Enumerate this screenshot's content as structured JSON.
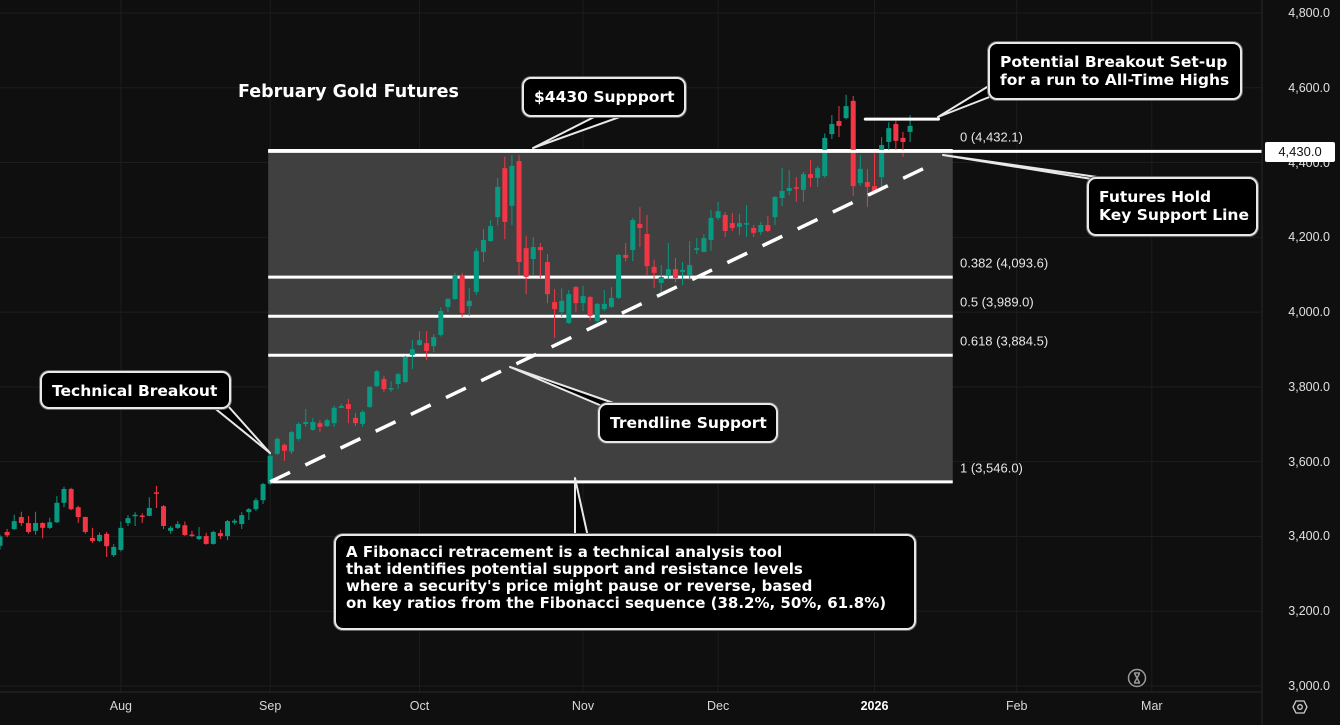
{
  "chart_data": {
    "type": "candlestick",
    "title": "February Gold Futures",
    "ylim": [
      3000,
      4800
    ],
    "y_ticks": [
      "4,800.0",
      "4,600.0",
      "4,400.0",
      "4,200.0",
      "4,000.0",
      "3,800.0",
      "3,600.0",
      "3,400.0",
      "3,200.0",
      "3,000.0"
    ],
    "y_tick_values": [
      4800,
      4600,
      4400,
      4200,
      4000,
      3800,
      3600,
      3400,
      3200,
      3000
    ],
    "x_ticks": [
      {
        "label": "Aug",
        "bar": 17,
        "bold": false
      },
      {
        "label": "Sep",
        "bar": 38,
        "bold": false
      },
      {
        "label": "Oct",
        "bar": 59,
        "bold": false
      },
      {
        "label": "Nov",
        "bar": 82,
        "bold": false
      },
      {
        "label": "Dec",
        "bar": 101,
        "bold": false
      },
      {
        "label": "2026",
        "bar": 123,
        "bold": true
      },
      {
        "label": "Feb",
        "bar": 143,
        "bold": false
      },
      {
        "label": "Mar",
        "bar": 162,
        "bold": false
      }
    ],
    "xlim_bars": [
      0,
      177.5
    ],
    "grid": true,
    "colors": {
      "up": "#089981",
      "down": "#f23645",
      "background": "#0f0f0f",
      "fib_fill": "#404040",
      "line": "#ffffff"
    },
    "candles_ohlc": [
      [
        3375,
        3405,
        3365,
        3400
      ],
      [
        3412,
        3420,
        3398,
        3403
      ],
      [
        3420,
        3458,
        3417,
        3441
      ],
      [
        3452,
        3466,
        3428,
        3436
      ],
      [
        3436,
        3455,
        3407,
        3412
      ],
      [
        3415,
        3466,
        3405,
        3436
      ],
      [
        3436,
        3438,
        3395,
        3423
      ],
      [
        3423,
        3450,
        3420,
        3438
      ],
      [
        3438,
        3508,
        3436,
        3490
      ],
      [
        3490,
        3533,
        3478,
        3527
      ],
      [
        3527,
        3530,
        3470,
        3473
      ],
      [
        3478,
        3482,
        3436,
        3452
      ],
      [
        3452,
        3453,
        3407,
        3412
      ],
      [
        3396,
        3423,
        3383,
        3388
      ],
      [
        3388,
        3410,
        3385,
        3404
      ],
      [
        3407,
        3412,
        3345,
        3374
      ],
      [
        3350,
        3380,
        3345,
        3372
      ],
      [
        3364,
        3440,
        3360,
        3423
      ],
      [
        3436,
        3457,
        3428,
        3449
      ],
      [
        3454,
        3465,
        3428,
        3458
      ],
      [
        3456,
        3462,
        3436,
        3452
      ],
      [
        3455,
        3505,
        3454,
        3476
      ],
      [
        3518,
        3535,
        3476,
        3514
      ],
      [
        3481,
        3484,
        3420,
        3428
      ],
      [
        3415,
        3428,
        3407,
        3423
      ],
      [
        3423,
        3441,
        3420,
        3433
      ],
      [
        3430,
        3440,
        3401,
        3404
      ],
      [
        3405,
        3415,
        3398,
        3402
      ],
      [
        3393,
        3425,
        3390,
        3401
      ],
      [
        3401,
        3410,
        3378,
        3380
      ],
      [
        3380,
        3415,
        3378,
        3412
      ],
      [
        3409,
        3418,
        3393,
        3401
      ],
      [
        3401,
        3444,
        3390,
        3441
      ],
      [
        3437,
        3447,
        3432,
        3442
      ],
      [
        3433,
        3465,
        3420,
        3457
      ],
      [
        3465,
        3476,
        3444,
        3473
      ],
      [
        3473,
        3503,
        3468,
        3497
      ],
      [
        3497,
        3543,
        3487,
        3540
      ],
      [
        3543,
        3622,
        3538,
        3615
      ],
      [
        3621,
        3665,
        3618,
        3661
      ],
      [
        3645,
        3648,
        3602,
        3629
      ],
      [
        3627,
        3682,
        3620,
        3679
      ],
      [
        3661,
        3705,
        3656,
        3701
      ],
      [
        3701,
        3741,
        3693,
        3706
      ],
      [
        3685,
        3717,
        3683,
        3706
      ],
      [
        3703,
        3711,
        3680,
        3693
      ],
      [
        3695,
        3715,
        3693,
        3711
      ],
      [
        3703,
        3750,
        3693,
        3744
      ],
      [
        3744,
        3755,
        3743,
        3749
      ],
      [
        3754,
        3768,
        3703,
        3741
      ],
      [
        3717,
        3730,
        3695,
        3703
      ],
      [
        3701,
        3737,
        3693,
        3733
      ],
      [
        3746,
        3802,
        3744,
        3800
      ],
      [
        3802,
        3845,
        3800,
        3842
      ],
      [
        3821,
        3830,
        3786,
        3794
      ],
      [
        3794,
        3815,
        3786,
        3797
      ],
      [
        3808,
        3838,
        3794,
        3834
      ],
      [
        3813,
        3883,
        3810,
        3880
      ],
      [
        3885,
        3925,
        3848,
        3901
      ],
      [
        3912,
        3949,
        3910,
        3925
      ],
      [
        3917,
        3949,
        3872,
        3896
      ],
      [
        3909,
        3941,
        3893,
        3933
      ],
      [
        3939,
        4013,
        3935,
        4003
      ],
      [
        4014,
        4038,
        4000,
        4035
      ],
      [
        4035,
        4105,
        4033,
        4099
      ],
      [
        4099,
        4105,
        3987,
        3998
      ],
      [
        4016,
        4064,
        3990,
        4030
      ],
      [
        4054,
        4171,
        4046,
        4163
      ],
      [
        4161,
        4222,
        4134,
        4193
      ],
      [
        4190,
        4246,
        4188,
        4230
      ],
      [
        4254,
        4359,
        4232,
        4335
      ],
      [
        4385,
        4416,
        4195,
        4241
      ],
      [
        4284,
        4420,
        4233,
        4391
      ],
      [
        4404,
        4420,
        4098,
        4134
      ],
      [
        4171,
        4204,
        4048,
        4094
      ],
      [
        4142,
        4201,
        4099,
        4174
      ],
      [
        4174,
        4185,
        4091,
        4166
      ],
      [
        4134,
        4155,
        4024,
        4048
      ],
      [
        4027,
        4062,
        3931,
        4008
      ],
      [
        4000,
        4064,
        3988,
        4030
      ],
      [
        3971,
        4059,
        3968,
        4048
      ],
      [
        4067,
        4070,
        4000,
        4024
      ],
      [
        4024,
        4070,
        4003,
        4043
      ],
      [
        4040,
        4043,
        3977,
        3990
      ],
      [
        3976,
        4024,
        3971,
        4022
      ],
      [
        4008,
        4059,
        4003,
        4022
      ],
      [
        4014,
        4067,
        4011,
        4038
      ],
      [
        4038,
        4156,
        4035,
        4153
      ],
      [
        4153,
        4185,
        4136,
        4145
      ],
      [
        4166,
        4252,
        4136,
        4246
      ],
      [
        4236,
        4281,
        4174,
        4225
      ],
      [
        4209,
        4260,
        4099,
        4123
      ],
      [
        4121,
        4140,
        4064,
        4105
      ],
      [
        4078,
        4126,
        4051,
        4094
      ],
      [
        4097,
        4185,
        4088,
        4115
      ],
      [
        4115,
        4145,
        4080,
        4091
      ],
      [
        4107,
        4134,
        4072,
        4113
      ],
      [
        4099,
        4190,
        4086,
        4126
      ],
      [
        4166,
        4198,
        4155,
        4171
      ],
      [
        4161,
        4209,
        4160,
        4198
      ],
      [
        4193,
        4273,
        4164,
        4252
      ],
      [
        4252,
        4295,
        4246,
        4270
      ],
      [
        4260,
        4268,
        4201,
        4217
      ],
      [
        4238,
        4265,
        4217,
        4225
      ],
      [
        4228,
        4263,
        4206,
        4238
      ],
      [
        4236,
        4286,
        4201,
        4238
      ],
      [
        4225,
        4233,
        4201,
        4212
      ],
      [
        4214,
        4241,
        4206,
        4233
      ],
      [
        4233,
        4257,
        4214,
        4217
      ],
      [
        4254,
        4310,
        4233,
        4308
      ],
      [
        4305,
        4385,
        4284,
        4324
      ],
      [
        4324,
        4380,
        4313,
        4332
      ],
      [
        4334,
        4361,
        4295,
        4330
      ],
      [
        4327,
        4375,
        4295,
        4369
      ],
      [
        4369,
        4407,
        4335,
        4359
      ],
      [
        4359,
        4391,
        4335,
        4385
      ],
      [
        4364,
        4478,
        4359,
        4466
      ],
      [
        4476,
        4527,
        4463,
        4503
      ],
      [
        4511,
        4551,
        4468,
        4498
      ],
      [
        4519,
        4581,
        4516,
        4551
      ],
      [
        4565,
        4578,
        4311,
        4337
      ],
      [
        4345,
        4420,
        4337,
        4383
      ],
      [
        4348,
        4383,
        4281,
        4335
      ],
      [
        4337,
        4425,
        4316,
        4324
      ],
      [
        4361,
        4468,
        4329,
        4447
      ],
      [
        4455,
        4508,
        4431,
        4492
      ],
      [
        4503,
        4511,
        4434,
        4458
      ],
      [
        4466,
        4482,
        4415,
        4455
      ],
      [
        4482,
        4527,
        4455,
        4498
      ]
    ],
    "fibonacci": {
      "start_bar": 38,
      "end_bar": 134,
      "levels": [
        {
          "ratio": 0,
          "price": 4432.1,
          "label": "0 (4,432.1)"
        },
        {
          "ratio": 0.382,
          "price": 4093.6,
          "label": "0.382 (4,093.6)"
        },
        {
          "ratio": 0.5,
          "price": 3989.0,
          "label": "0.5 (3,989.0)"
        },
        {
          "ratio": 0.618,
          "price": 3884.5,
          "label": "0.618 (3,884.5)"
        },
        {
          "ratio": 1,
          "price": 3546.0,
          "label": "1 (3,546.0)"
        }
      ]
    },
    "trendline": {
      "from": {
        "bar": 38,
        "price": 3546
      },
      "to": {
        "bar": 130,
        "price": 4385
      },
      "style": "dashed"
    },
    "support_line": {
      "price": 4430,
      "from_bar": 38,
      "label": "4,430.0"
    },
    "resistance_segment": {
      "price": 4516,
      "from_bar": 121.7,
      "to_bar": 132
    }
  },
  "annotations": {
    "support": "$4430 Suppport",
    "breakout_setup": [
      "Potential Breakout Set-up",
      "for a run to All-Time Highs"
    ],
    "futures_hold": [
      "Futures Hold",
      "Key Support Line"
    ],
    "technical_breakout": "Technical Breakout",
    "trendline_support": "Trendline Support",
    "fibonacci_note": [
      "A Fibonacci retracement is a technical analysis tool",
      "that identifies potential support and resistance levels",
      "where a security's price might pause or reverse, based",
      "on key ratios from the Fibonacci sequence (38.2%, 50%, 61.8%)"
    ]
  },
  "icons": {
    "replay": "hourglass-icon",
    "settings": "settings-gear-icon"
  }
}
